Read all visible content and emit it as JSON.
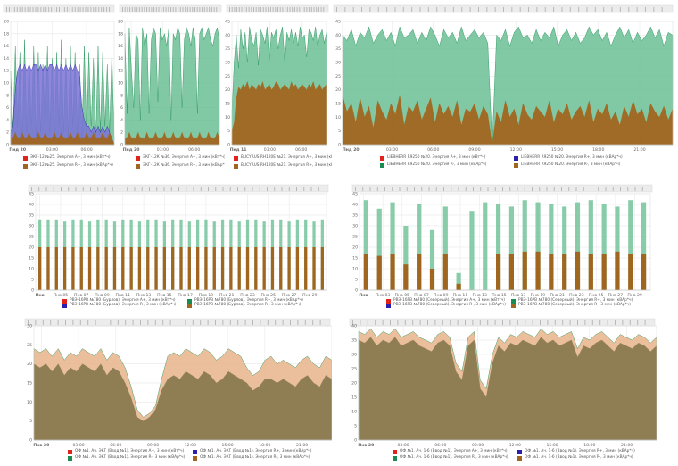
{
  "colors": {
    "green": "#6bbf95",
    "green_dark": "#1a8c52",
    "brown": "#a0661f",
    "red": "#e2231a",
    "blue_fill": "#7b72d6",
    "blue_dark": "#2b1fb0",
    "peach": "#e8b48a",
    "olive": "#8a7a50",
    "grid": "#e6e6e6",
    "axis_text": "#666666"
  },
  "chart_data": [
    {
      "id": "p1",
      "type": "area",
      "xlabels": [
        "Пнд 20",
        "03:00",
        "06:00"
      ],
      "yticks": [
        0,
        2,
        4,
        6,
        8,
        10,
        12,
        14,
        16,
        18,
        20
      ],
      "ylim": [
        0,
        20
      ],
      "series": [
        {
          "name": "ЭКГ-12 №25. Энергия А+, 3 мин (кВт*ч)",
          "color": "#e2231a",
          "values": [
            12,
            2,
            16,
            3,
            15,
            1,
            17,
            2,
            14,
            3,
            16,
            1,
            15,
            2,
            13,
            3,
            16,
            2,
            14,
            1,
            15,
            3,
            17,
            2,
            14,
            1,
            16,
            3,
            15,
            2,
            13,
            1,
            16,
            2,
            15,
            3,
            14,
            1,
            16,
            2,
            15,
            3,
            13,
            2,
            15,
            1
          ]
        },
        {
          "name": "ЭКГ-12 №25. Энергия R+, 3 мин (кВАр*ч)",
          "color": "#a0661f",
          "values": [
            1,
            1,
            2,
            1,
            1,
            2,
            1,
            1,
            2,
            1,
            1,
            1,
            2,
            1,
            1,
            2,
            1,
            1,
            1,
            2,
            1,
            1,
            2,
            1,
            1,
            1,
            2,
            1,
            1,
            2,
            1,
            1,
            1,
            2,
            1,
            1,
            2,
            1,
            1,
            1,
            2,
            1,
            1,
            2
          ]
        }
      ],
      "band": {
        "name": "blue band",
        "values": [
          2,
          3,
          9,
          12,
          13,
          12,
          13,
          12,
          13,
          12,
          13,
          13,
          12,
          13,
          12,
          13,
          12,
          13,
          13,
          12,
          13,
          12,
          13,
          12,
          13,
          12,
          13,
          12,
          13,
          12,
          11,
          6,
          4,
          3,
          3,
          2,
          3,
          2,
          3,
          2,
          3,
          2,
          3,
          2
        ]
      }
    },
    {
      "id": "p2",
      "type": "area",
      "xlabels": [
        "Пнд 20",
        "03:00",
        "06:00"
      ],
      "yticks": [
        0,
        2,
        4,
        6,
        8,
        10,
        12,
        14,
        16,
        18,
        20
      ],
      "ylim": [
        0,
        20
      ],
      "series": [
        {
          "name": "ЭКГ-12К №36. Энергия А+, 3 мин (кВт*ч)",
          "color": "#e2231a",
          "values": [
            18,
            5,
            19,
            12,
            6,
            18,
            17,
            4,
            19,
            16,
            18,
            5,
            17,
            19,
            18,
            7,
            19,
            17,
            18,
            16,
            19,
            4,
            18,
            17,
            19,
            18,
            6,
            17,
            19,
            18,
            16,
            19,
            17,
            5,
            18,
            19,
            17,
            18,
            19,
            17,
            16,
            18,
            19,
            17
          ]
        },
        {
          "name": "ЭКГ-12К №36. Энергия R+, 3 мин (кВАр*ч)",
          "color": "#a0661f",
          "values": [
            1,
            1,
            2,
            1,
            1,
            1,
            2,
            1,
            1,
            1,
            2,
            1,
            1,
            1,
            2,
            1,
            1,
            1,
            2,
            1,
            1,
            1,
            2,
            1,
            1,
            1,
            2,
            1,
            1,
            1,
            2,
            1,
            1,
            1,
            2,
            1,
            1,
            1,
            2,
            1,
            1,
            1,
            2,
            1
          ]
        }
      ]
    },
    {
      "id": "p3",
      "type": "area",
      "xlabels": [
        "Пнд 11",
        "03:00",
        "06:00"
      ],
      "yticks": [
        0,
        5,
        10,
        15,
        20,
        25,
        30,
        35,
        40,
        45
      ],
      "ylim": [
        0,
        45
      ],
      "series": [
        {
          "name": "BUCYRUS RH120E №21. Энергия А+, 3 мин (кВт*ч)",
          "color": "#e2231a",
          "values": [
            12,
            30,
            40,
            28,
            42,
            35,
            41,
            30,
            43,
            38,
            36,
            41,
            29,
            42,
            40,
            37,
            43,
            31,
            41,
            39,
            42,
            35,
            40,
            43,
            30,
            41,
            38,
            42,
            37,
            41,
            36,
            43,
            39,
            40,
            32,
            42,
            41,
            38,
            43,
            36,
            40,
            42,
            37,
            41
          ]
        },
        {
          "name": "BUCYRUS RH120E №21. Энергия R+, 3 мин (кВАр*ч)",
          "color": "#a0661f",
          "values": [
            5,
            8,
            17,
            21,
            20,
            22,
            21,
            23,
            20,
            22,
            21,
            20,
            22,
            21,
            23,
            20,
            21,
            22,
            20,
            21,
            23,
            22,
            20,
            21,
            22,
            21,
            20,
            23,
            21,
            22,
            20,
            21,
            22,
            21,
            20,
            22,
            21,
            23,
            20,
            21,
            22,
            20,
            21,
            22
          ]
        }
      ]
    },
    {
      "id": "p4",
      "type": "area",
      "xlabels": [
        "Пнд 20",
        "03:00",
        "06:00",
        "09:00",
        "12:00",
        "15:00",
        "18:00",
        "21:00"
      ],
      "yticks": [
        0,
        5,
        10,
        15,
        20,
        25,
        30,
        35,
        40,
        45
      ],
      "ylim": [
        0,
        45
      ],
      "series": [
        {
          "name": "LIEBHERR R9250 №20. Энергия А+, 3 мин (кВт*ч)",
          "color": "#e2231a",
          "values": [
            40,
            38,
            42,
            36,
            41,
            39,
            43,
            37,
            40,
            42,
            38,
            41,
            36,
            43,
            39,
            40,
            42,
            37,
            41,
            38,
            43,
            40,
            36,
            42,
            39,
            41,
            37,
            43,
            38,
            40,
            42,
            39,
            41,
            37,
            0,
            40,
            38,
            42,
            36,
            41,
            43,
            39,
            40,
            37,
            42,
            38,
            41,
            39,
            43,
            36,
            40,
            42,
            38,
            41,
            37,
            39,
            43,
            40,
            42,
            38,
            41,
            36,
            40,
            43,
            39,
            42,
            37,
            41,
            38,
            40,
            43,
            39,
            42,
            36,
            41,
            40
          ]
        },
        {
          "name": "LIEBHERR R9250 №20. Энергия R+, 3 мин (кВАр*ч)",
          "color": "#2b1fb0",
          "values": [
            18,
            12,
            15,
            8,
            17,
            10,
            14,
            6,
            16,
            12,
            9,
            15,
            11,
            18,
            7,
            14,
            12,
            16,
            9,
            13,
            17,
            8,
            15,
            11,
            14,
            10,
            16,
            7,
            13,
            12,
            15,
            9,
            14,
            11,
            0,
            12,
            8,
            16,
            10,
            13,
            7,
            15,
            11,
            9,
            14,
            12,
            10,
            16,
            8,
            13,
            11,
            15,
            9,
            12,
            14,
            10,
            16,
            8,
            13,
            11,
            15,
            9,
            12,
            7,
            14,
            10,
            16,
            11,
            13,
            8,
            15,
            12,
            10,
            14,
            9,
            13
          ]
        },
        {
          "name": "LIEBHERR R9250 №20. Энергия R-, 3 мин (кВАр*ч)",
          "color": "#1a8c52",
          "values": []
        },
        {
          "name": "LIEBHERR R9250 №20. Энергия R-, 3 мин (кВАр*ч)",
          "color": "#a0661f",
          "values": []
        }
      ]
    },
    {
      "id": "p5",
      "type": "bar",
      "xlabels": [
        "Пнв",
        "Пнв 05",
        "Пнв 07",
        "Пнв 09",
        "Пнв 11",
        "Пнв 13",
        "Пнв 15",
        "Пнв 17",
        "Пнв 19",
        "Пнв 21",
        "Пнв 23",
        "Пнв 25",
        "Пнв 27",
        "Пнв 29"
      ],
      "yticks": [
        0,
        5,
        10,
        15,
        20,
        25,
        30,
        35,
        40,
        45
      ],
      "ylim": [
        0,
        45
      ],
      "bars_total": [
        33,
        33,
        33,
        32,
        33,
        33,
        32,
        33,
        33,
        32,
        33,
        33,
        32,
        33,
        33,
        32,
        33,
        33,
        32,
        33,
        33,
        32,
        33,
        33,
        32,
        33,
        33,
        32,
        33,
        33,
        32,
        33,
        33,
        32,
        33
      ],
      "bars_base": [
        20,
        20,
        20,
        20,
        20,
        20,
        20,
        20,
        20,
        20,
        20,
        20,
        20,
        20,
        20,
        20,
        20,
        20,
        20,
        20,
        20,
        20,
        20,
        20,
        20,
        20,
        20,
        20,
        20,
        20,
        20,
        20,
        20,
        20,
        20
      ],
      "legend": [
        {
          "name": "РВЭ-16РВ №780 (Бурлов). Энергия А+, 3 мин (кВт*ч)",
          "color": "#e2231a"
        },
        {
          "name": "РВЭ-16РВ №780 (Бурлов). Энергия R+, 3 мин (кВАр*ч)",
          "color": "#1a8c52"
        },
        {
          "name": "РВЭ-16РВ №780 (Бурлов). Энергия R-, 3 мин (кВАр*ч)",
          "color": "#2b1fb0"
        },
        {
          "name": "РВЭ-16РВ №780 (Бурлов). Энергия R-, 3 мин (кВАр*ч)",
          "color": "#a0661f"
        }
      ]
    },
    {
      "id": "p6",
      "type": "bar",
      "xlabels": [
        "Пнв",
        "Пнв 03",
        "Пнв 05",
        "Пнв 07",
        "Пнв 09",
        "Пнв 11",
        "Пнв 13",
        "Пнв 15",
        "Пнв 17",
        "Пнв 19",
        "Пнв 21",
        "Пнв 23",
        "Пнв 25",
        "Пнв 27",
        "Пнв 29"
      ],
      "yticks": [
        0,
        5,
        10,
        15,
        20,
        25,
        30,
        35,
        40,
        45
      ],
      "ylim": [
        0,
        45
      ],
      "bars_total": [
        42,
        38,
        41,
        30,
        40,
        28,
        39,
        8,
        37,
        41,
        40,
        39,
        42,
        41,
        40,
        39,
        41,
        42,
        40,
        39,
        42,
        41
      ],
      "bars_base": [
        17,
        16,
        17,
        12,
        17,
        10,
        17,
        3,
        0,
        0,
        17,
        17,
        18,
        18,
        17,
        17,
        18,
        17,
        17,
        18,
        17,
        17
      ],
      "legend": [
        {
          "name": "РВЭ-16РВ №780 (Северный). Энергия А+, 3 мин (кВт*ч)",
          "color": "#e2231a"
        },
        {
          "name": "РВЭ-16РВ №780 (Северный). Энергия R+, 3 мин (кВАр*ч)",
          "color": "#1a8c52"
        },
        {
          "name": "РВЭ-16РВ №780 (Северный). Энергия R-, 3 мин (кВАр*ч)",
          "color": "#2b1fb0"
        },
        {
          "name": "РВЭ-16РВ №780 (Северный). Энергия R-, 3 мин (кВАр*ч)",
          "color": "#a0661f"
        }
      ]
    },
    {
      "id": "p7",
      "type": "area",
      "xlabels": [
        "Пнв 20",
        "03:00",
        "06:00",
        "09:00",
        "12:00",
        "15:00",
        "18:00",
        "21:00"
      ],
      "yticks": [
        0,
        5,
        10,
        15,
        20,
        25,
        30
      ],
      "ylim": [
        0,
        30
      ],
      "series": [
        {
          "name": "ОФ №1. Ач. ЭКГ (Ввод №1). Энергия А+, 3 мин (кВт*ч)",
          "color": "#e2231a",
          "values": [
            24,
            23,
            24,
            22,
            24,
            21,
            23,
            22,
            24,
            23,
            22,
            24,
            21,
            23,
            22,
            19,
            14,
            8,
            6,
            7,
            9,
            16,
            22,
            23,
            22,
            24,
            23,
            22,
            24,
            23,
            21,
            22,
            24,
            23,
            22,
            19,
            17,
            18,
            21,
            22,
            20,
            21,
            20,
            19,
            21,
            22,
            20,
            19,
            22,
            21
          ]
        },
        {
          "name": "ОФ №1. Ач. ЭКГ (Ввод №1). Энергия R+, 3 мин (кВАр*ч)",
          "color": "#2b1fb0",
          "values": [
            20,
            19,
            20,
            18,
            20,
            17,
            19,
            18,
            20,
            19,
            18,
            20,
            17,
            19,
            18,
            15,
            11,
            6,
            5,
            6,
            8,
            13,
            16,
            17,
            16,
            18,
            17,
            16,
            18,
            17,
            15,
            16,
            18,
            17,
            16,
            15,
            13,
            14,
            16,
            16,
            15,
            16,
            15,
            14,
            16,
            17,
            15,
            14,
            17,
            16
          ]
        },
        {
          "name": "ОФ №1. Ач. ЭКГ (Ввод №1). Энергия R-, 3 мин (кВАр*ч)",
          "color": "#1a8c52",
          "values": []
        },
        {
          "name": "ОФ №1. Ач. ЭКГ (Ввод №1). Энергия R-, 3 мин (кВАр*ч)",
          "color": "#a0661f",
          "values": []
        }
      ]
    },
    {
      "id": "p8",
      "type": "area",
      "xlabels": [
        "Пнв 20",
        "03:00",
        "06:00",
        "09:00",
        "12:00",
        "15:00",
        "18:00",
        "21:00"
      ],
      "yticks": [
        0,
        5,
        10,
        15,
        20,
        25,
        30,
        35,
        40
      ],
      "ylim": [
        0,
        40
      ],
      "series": [
        {
          "name": "ОФ №1. Ач. 1-6 (Ввод №1). Энергия А+, 3 мин (кВт*ч)",
          "color": "#e2231a",
          "values": [
            38,
            37,
            39,
            36,
            38,
            37,
            39,
            36,
            37,
            38,
            36,
            35,
            34,
            37,
            38,
            36,
            27,
            24,
            36,
            38,
            21,
            18,
            30,
            36,
            34,
            37,
            36,
            38,
            37,
            36,
            39,
            37,
            38,
            36,
            37,
            38,
            32,
            36,
            35,
            37,
            38,
            36,
            34,
            37,
            36,
            35,
            37,
            36,
            34,
            36
          ]
        },
        {
          "name": "ОФ №1. Ач. 1-6 (Ввод №1). Энергия R+, 3 мин (кВАр*ч)",
          "color": "#2b1fb0",
          "values": [
            35,
            34,
            36,
            33,
            35,
            34,
            36,
            33,
            34,
            35,
            33,
            32,
            31,
            34,
            35,
            33,
            24,
            21,
            33,
            35,
            18,
            15,
            27,
            33,
            31,
            34,
            33,
            35,
            34,
            33,
            36,
            34,
            35,
            33,
            34,
            35,
            29,
            33,
            32,
            34,
            35,
            33,
            31,
            34,
            33,
            32,
            34,
            33,
            31,
            33
          ]
        },
        {
          "name": "ОФ №1. Ач. 1-6 (Ввод №1). Энергия R-, 3 мин (кВАр*ч)",
          "color": "#1a8c52",
          "values": []
        },
        {
          "name": "ОФ №1. Ач. 1-6 (Ввод №1). Энергия R-, 3 мин (кВАр*ч)",
          "color": "#a0661f",
          "values": []
        }
      ]
    }
  ]
}
